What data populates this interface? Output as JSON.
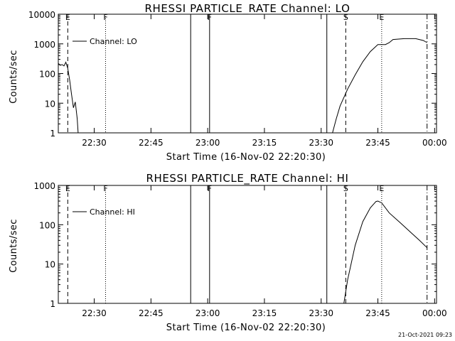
{
  "chart_data": [
    {
      "type": "line",
      "title": "RHESSI PARTICLE_RATE Channel: LO",
      "xlabel": "Start Time (16-Nov-02 22:20:30)",
      "ylabel": "Counts/sec",
      "yscale": "log",
      "ylim": [
        1,
        10000
      ],
      "xlim_minutes_after_22_20_30": [
        0,
        100
      ],
      "x_ticks": [
        "22:30",
        "22:45",
        "23:00",
        "23:15",
        "23:30",
        "23:45",
        "00:00"
      ],
      "y_ticks": [
        "1",
        "10",
        "100",
        "1000",
        "10000"
      ],
      "legend": "Channel: LO",
      "legend_location": "top-left",
      "event_markers": [
        {
          "label": "E",
          "time": "22:23:00",
          "style": "dashed"
        },
        {
          "label": "F",
          "time": "22:33:00",
          "style": "dotted"
        },
        {
          "label": "",
          "time": "22:55:30",
          "style": "solid"
        },
        {
          "label": "F",
          "time": "23:00:30",
          "style": "solid"
        },
        {
          "label": "",
          "time": "23:31:30",
          "style": "solid"
        },
        {
          "label": "S",
          "time": "23:36:30",
          "style": "dashed"
        },
        {
          "label": "E",
          "time": "23:46:00",
          "style": "dotted"
        },
        {
          "label": "",
          "time": "23:58:00",
          "style": "dashdot"
        }
      ],
      "series": [
        {
          "name": "Channel: LO",
          "segments": [
            [
              [
                "22:20:30",
                220
              ],
              [
                "22:21:00",
                190
              ],
              [
                "22:21:30",
                200
              ],
              [
                "22:22:00",
                180
              ],
              [
                "22:22:30",
                240
              ],
              [
                "22:23:00",
                150
              ],
              [
                "22:23:30",
                60
              ],
              [
                "22:24:00",
                20
              ],
              [
                "22:24:30",
                7
              ],
              [
                "22:25:00",
                11
              ],
              [
                "22:25:30",
                3
              ],
              [
                "22:25:45",
                1
              ]
            ],
            [
              [
                "23:33:00",
                1
              ],
              [
                "23:34:00",
                3
              ],
              [
                "23:35:00",
                8
              ],
              [
                "23:37:00",
                30
              ],
              [
                "23:39:00",
                90
              ],
              [
                "23:41:00",
                250
              ],
              [
                "23:43:00",
                550
              ],
              [
                "23:45:00",
                950
              ],
              [
                "23:47:00",
                950
              ],
              [
                "23:48:00",
                1100
              ],
              [
                "23:49:00",
                1400
              ],
              [
                "23:52:00",
                1500
              ],
              [
                "23:55:00",
                1500
              ],
              [
                "23:57:00",
                1300
              ],
              [
                "23:58:00",
                1100
              ]
            ]
          ]
        }
      ]
    },
    {
      "type": "line",
      "title": "RHESSI PARTICLE_RATE Channel: HI",
      "xlabel": "Start Time (16-Nov-02 22:20:30)",
      "ylabel": "Counts/sec",
      "yscale": "log",
      "ylim": [
        1,
        1000
      ],
      "xlim_minutes_after_22_20_30": [
        0,
        100
      ],
      "x_ticks": [
        "22:30",
        "22:45",
        "23:00",
        "23:15",
        "23:30",
        "23:45",
        "00:00"
      ],
      "y_ticks": [
        "1",
        "10",
        "100",
        "1000"
      ],
      "legend": "Channel: HI",
      "legend_location": "top-left",
      "event_markers": [
        {
          "label": "E",
          "time": "22:23:00",
          "style": "dashed"
        },
        {
          "label": "F",
          "time": "22:33:00",
          "style": "dotted"
        },
        {
          "label": "",
          "time": "22:55:30",
          "style": "solid"
        },
        {
          "label": "F",
          "time": "23:00:30",
          "style": "solid"
        },
        {
          "label": "",
          "time": "23:31:30",
          "style": "solid"
        },
        {
          "label": "S",
          "time": "23:36:30",
          "style": "dashed"
        },
        {
          "label": "E",
          "time": "23:46:00",
          "style": "dotted"
        },
        {
          "label": "",
          "time": "23:58:00",
          "style": "dashdot"
        }
      ],
      "series": [
        {
          "name": "Channel: HI",
          "segments": [
            [
              [
                "23:36:00",
                1
              ],
              [
                "23:37:00",
                4
              ],
              [
                "23:39:00",
                30
              ],
              [
                "23:41:00",
                120
              ],
              [
                "23:43:00",
                270
              ],
              [
                "23:44:30",
                390
              ],
              [
                "23:45:00",
                400
              ],
              [
                "23:46:00",
                360
              ],
              [
                "23:48:00",
                200
              ],
              [
                "23:51:00",
                110
              ],
              [
                "23:54:00",
                60
              ],
              [
                "23:56:00",
                40
              ],
              [
                "23:58:00",
                26
              ]
            ]
          ]
        }
      ]
    }
  ],
  "timestamp": "21-Oct-2021 09:23",
  "colors": {
    "background": "#ffffff",
    "foreground": "#000000"
  }
}
